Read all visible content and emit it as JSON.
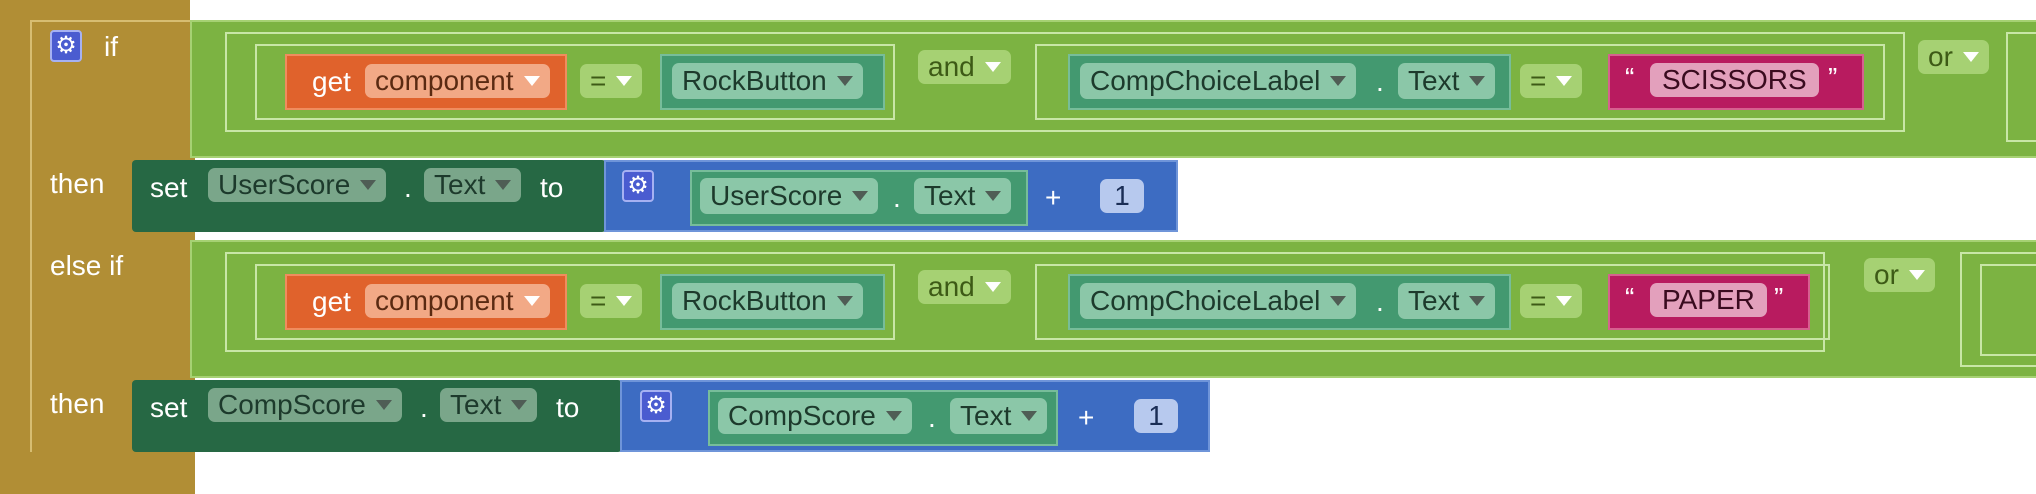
{
  "blocks": {
    "if_label": "if",
    "else_if_label": "else if",
    "then_label": "then",
    "set_label": "set",
    "to_label": "to",
    "get_label": "get",
    "and_label": "and",
    "or_label": "or",
    "eq_label": "=",
    "dot_label": ".",
    "plus_label": "+",
    "component_var": "component",
    "rock_button": "RockButton",
    "comp_choice_label": "CompChoiceLabel",
    "text_prop": "Text",
    "scissors": "SCISSORS",
    "paper": "PAPER",
    "user_score": "UserScore",
    "comp_score": "CompScore",
    "one": "1",
    "open_quote": "“",
    "close_quote": "”"
  },
  "icons": {
    "gear": "⚙",
    "dropdown": "chevron-down-icon"
  },
  "colors": {
    "control": "#b18e35",
    "logic": "#7cb342",
    "component": "#439970",
    "set": "#266844",
    "get": "#e0622c",
    "text": "#b81b5f",
    "math": "#3d6cc2"
  }
}
